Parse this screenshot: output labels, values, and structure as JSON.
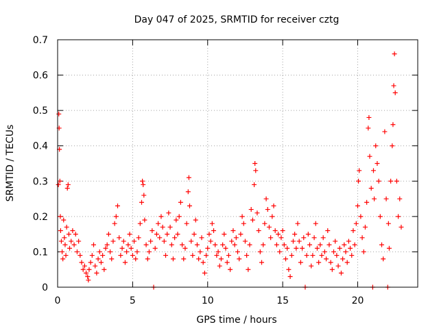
{
  "chart_data": {
    "type": "scatter",
    "title": "Day 047 of 2025, SRMTID for receiver cztg",
    "xlabel": "GPS time / hours",
    "ylabel": "SRMTID / TECUs",
    "xlim": [
      0,
      24
    ],
    "ylim": [
      0,
      0.7
    ],
    "xticks": [
      0,
      5,
      10,
      15,
      20
    ],
    "xtick_labels": [
      "0",
      "5",
      "10",
      "15",
      "20"
    ],
    "yticks": [
      0,
      0.1,
      0.2,
      0.3,
      0.4,
      0.5,
      0.6,
      0.7
    ],
    "ytick_labels": [
      "0",
      "0.1",
      "0.2",
      "0.3",
      "0.4",
      "0.5",
      "0.6",
      "0.7"
    ],
    "grid": true,
    "marker": "+",
    "colors": {
      "points": "#ff0000",
      "grid": "#a0a0a0",
      "axis": "#000000"
    },
    "series": [
      {
        "name": "SRMTID",
        "approximate": true,
        "points": [
          [
            0.05,
            0.29
          ],
          [
            0.08,
            0.49
          ],
          [
            0.1,
            0.45
          ],
          [
            0.12,
            0.39
          ],
          [
            0.15,
            0.3
          ],
          [
            0.18,
            0.2
          ],
          [
            0.2,
            0.16
          ],
          [
            0.25,
            0.13
          ],
          [
            0.3,
            0.1
          ],
          [
            0.35,
            0.08
          ],
          [
            0.4,
            0.19
          ],
          [
            0.45,
            0.14
          ],
          [
            0.5,
            0.12
          ],
          [
            0.55,
            0.09
          ],
          [
            0.6,
            0.17
          ],
          [
            0.65,
            0.28
          ],
          [
            0.7,
            0.29
          ],
          [
            0.75,
            0.15
          ],
          [
            0.8,
            0.11
          ],
          [
            0.9,
            0.13
          ],
          [
            1.0,
            0.16
          ],
          [
            1.1,
            0.12
          ],
          [
            1.2,
            0.15
          ],
          [
            1.3,
            0.1
          ],
          [
            1.4,
            0.13
          ],
          [
            1.5,
            0.09
          ],
          [
            1.6,
            0.07
          ],
          [
            1.7,
            0.05
          ],
          [
            1.8,
            0.06
          ],
          [
            1.9,
            0.04
          ],
          [
            2.0,
            0.03
          ],
          [
            2.05,
            0.02
          ],
          [
            2.1,
            0.05
          ],
          [
            2.2,
            0.07
          ],
          [
            2.3,
            0.09
          ],
          [
            2.4,
            0.12
          ],
          [
            2.5,
            0.06
          ],
          [
            2.6,
            0.04
          ],
          [
            2.7,
            0.08
          ],
          [
            2.8,
            0.1
          ],
          [
            2.9,
            0.07
          ],
          [
            3.0,
            0.09
          ],
          [
            3.1,
            0.05
          ],
          [
            3.2,
            0.11
          ],
          [
            3.3,
            0.12
          ],
          [
            3.4,
            0.15
          ],
          [
            3.5,
            0.1
          ],
          [
            3.6,
            0.08
          ],
          [
            3.7,
            0.13
          ],
          [
            3.8,
            0.18
          ],
          [
            3.9,
            0.2
          ],
          [
            4.0,
            0.23
          ],
          [
            4.1,
            0.14
          ],
          [
            4.2,
            0.09
          ],
          [
            4.3,
            0.11
          ],
          [
            4.4,
            0.13
          ],
          [
            4.5,
            0.07
          ],
          [
            4.6,
            0.1
          ],
          [
            4.7,
            0.12
          ],
          [
            4.8,
            0.15
          ],
          [
            4.9,
            0.11
          ],
          [
            5.0,
            0.09
          ],
          [
            5.1,
            0.13
          ],
          [
            5.2,
            0.08
          ],
          [
            5.3,
            0.1
          ],
          [
            5.4,
            0.14
          ],
          [
            5.5,
            0.18
          ],
          [
            5.6,
            0.24
          ],
          [
            5.65,
            0.3
          ],
          [
            5.7,
            0.29
          ],
          [
            5.75,
            0.26
          ],
          [
            5.8,
            0.19
          ],
          [
            5.9,
            0.12
          ],
          [
            6.0,
            0.08
          ],
          [
            6.1,
            0.1
          ],
          [
            6.2,
            0.13
          ],
          [
            6.3,
            0.16
          ],
          [
            6.4,
            0.0
          ],
          [
            6.5,
            0.11
          ],
          [
            6.6,
            0.15
          ],
          [
            6.7,
            0.18
          ],
          [
            6.8,
            0.14
          ],
          [
            6.9,
            0.2
          ],
          [
            7.0,
            0.17
          ],
          [
            7.1,
            0.13
          ],
          [
            7.2,
            0.09
          ],
          [
            7.3,
            0.15
          ],
          [
            7.4,
            0.21
          ],
          [
            7.5,
            0.17
          ],
          [
            7.6,
            0.12
          ],
          [
            7.7,
            0.08
          ],
          [
            7.8,
            0.14
          ],
          [
            7.9,
            0.19
          ],
          [
            8.0,
            0.15
          ],
          [
            8.1,
            0.2
          ],
          [
            8.2,
            0.24
          ],
          [
            8.3,
            0.12
          ],
          [
            8.4,
            0.08
          ],
          [
            8.5,
            0.11
          ],
          [
            8.6,
            0.18
          ],
          [
            8.7,
            0.27
          ],
          [
            8.75,
            0.31
          ],
          [
            8.8,
            0.23
          ],
          [
            8.9,
            0.13
          ],
          [
            9.0,
            0.09
          ],
          [
            9.1,
            0.15
          ],
          [
            9.2,
            0.19
          ],
          [
            9.3,
            0.12
          ],
          [
            9.4,
            0.08
          ],
          [
            9.5,
            0.1
          ],
          [
            9.6,
            0.14
          ],
          [
            9.7,
            0.07
          ],
          [
            9.8,
            0.04
          ],
          [
            9.9,
            0.09
          ],
          [
            10.0,
            0.11
          ],
          [
            10.1,
            0.15
          ],
          [
            10.2,
            0.13
          ],
          [
            10.3,
            0.18
          ],
          [
            10.4,
            0.16
          ],
          [
            10.5,
            0.12
          ],
          [
            10.6,
            0.09
          ],
          [
            10.7,
            0.1
          ],
          [
            10.8,
            0.06
          ],
          [
            10.9,
            0.08
          ],
          [
            11.0,
            0.12
          ],
          [
            11.1,
            0.15
          ],
          [
            11.2,
            0.11
          ],
          [
            11.3,
            0.07
          ],
          [
            11.4,
            0.09
          ],
          [
            11.5,
            0.05
          ],
          [
            11.6,
            0.13
          ],
          [
            11.7,
            0.16
          ],
          [
            11.8,
            0.12
          ],
          [
            11.9,
            0.14
          ],
          [
            12.0,
            0.1
          ],
          [
            12.1,
            0.08
          ],
          [
            12.2,
            0.15
          ],
          [
            12.3,
            0.2
          ],
          [
            12.4,
            0.18
          ],
          [
            12.5,
            0.13
          ],
          [
            12.6,
            0.09
          ],
          [
            12.7,
            0.05
          ],
          [
            12.8,
            0.12
          ],
          [
            12.9,
            0.22
          ],
          [
            13.0,
            0.19
          ],
          [
            13.1,
            0.29
          ],
          [
            13.15,
            0.35
          ],
          [
            13.2,
            0.33
          ],
          [
            13.3,
            0.21
          ],
          [
            13.4,
            0.16
          ],
          [
            13.5,
            0.1
          ],
          [
            13.6,
            0.07
          ],
          [
            13.7,
            0.12
          ],
          [
            13.8,
            0.18
          ],
          [
            13.9,
            0.25
          ],
          [
            14.0,
            0.22
          ],
          [
            14.1,
            0.17
          ],
          [
            14.2,
            0.14
          ],
          [
            14.3,
            0.2
          ],
          [
            14.4,
            0.23
          ],
          [
            14.5,
            0.16
          ],
          [
            14.6,
            0.12
          ],
          [
            14.7,
            0.15
          ],
          [
            14.8,
            0.1
          ],
          [
            14.9,
            0.14
          ],
          [
            15.0,
            0.16
          ],
          [
            15.1,
            0.12
          ],
          [
            15.2,
            0.08
          ],
          [
            15.3,
            0.11
          ],
          [
            15.4,
            0.05
          ],
          [
            15.5,
            0.03
          ],
          [
            15.6,
            0.09
          ],
          [
            15.7,
            0.13
          ],
          [
            15.8,
            0.15
          ],
          [
            15.9,
            0.11
          ],
          [
            16.0,
            0.18
          ],
          [
            16.1,
            0.13
          ],
          [
            16.2,
            0.07
          ],
          [
            16.3,
            0.11
          ],
          [
            16.4,
            0.14
          ],
          [
            16.5,
            0.0
          ],
          [
            16.6,
            0.09
          ],
          [
            16.7,
            0.15
          ],
          [
            16.8,
            0.12
          ],
          [
            16.9,
            0.06
          ],
          [
            17.0,
            0.09
          ],
          [
            17.1,
            0.14
          ],
          [
            17.2,
            0.18
          ],
          [
            17.3,
            0.11
          ],
          [
            17.4,
            0.07
          ],
          [
            17.5,
            0.12
          ],
          [
            17.6,
            0.09
          ],
          [
            17.7,
            0.14
          ],
          [
            17.8,
            0.1
          ],
          [
            17.9,
            0.08
          ],
          [
            18.0,
            0.16
          ],
          [
            18.1,
            0.12
          ],
          [
            18.2,
            0.07
          ],
          [
            18.3,
            0.05
          ],
          [
            18.4,
            0.1
          ],
          [
            18.5,
            0.13
          ],
          [
            18.6,
            0.09
          ],
          [
            18.7,
            0.06
          ],
          [
            18.8,
            0.11
          ],
          [
            18.9,
            0.04
          ],
          [
            19.0,
            0.08
          ],
          [
            19.1,
            0.12
          ],
          [
            19.2,
            0.1
          ],
          [
            19.3,
            0.07
          ],
          [
            19.4,
            0.13
          ],
          [
            19.5,
            0.11
          ],
          [
            19.6,
            0.09
          ],
          [
            19.7,
            0.16
          ],
          [
            19.8,
            0.12
          ],
          [
            19.9,
            0.18
          ],
          [
            20.0,
            0.23
          ],
          [
            20.05,
            0.3
          ],
          [
            20.1,
            0.33
          ],
          [
            20.2,
            0.2
          ],
          [
            20.3,
            0.14
          ],
          [
            20.4,
            0.1
          ],
          [
            20.5,
            0.17
          ],
          [
            20.6,
            0.24
          ],
          [
            20.7,
            0.45
          ],
          [
            20.75,
            0.48
          ],
          [
            20.8,
            0.37
          ],
          [
            20.9,
            0.28
          ],
          [
            21.0,
            0.0
          ],
          [
            21.05,
            0.33
          ],
          [
            21.1,
            0.25
          ],
          [
            21.2,
            0.4
          ],
          [
            21.3,
            0.35
          ],
          [
            21.4,
            0.3
          ],
          [
            21.5,
            0.2
          ],
          [
            21.6,
            0.12
          ],
          [
            21.7,
            0.08
          ],
          [
            21.8,
            0.44
          ],
          [
            21.9,
            0.25
          ],
          [
            22.0,
            0.0
          ],
          [
            22.05,
            0.18
          ],
          [
            22.1,
            0.11
          ],
          [
            22.2,
            0.3
          ],
          [
            22.3,
            0.4
          ],
          [
            22.35,
            0.46
          ],
          [
            22.4,
            0.57
          ],
          [
            22.45,
            0.66
          ],
          [
            22.5,
            0.55
          ],
          [
            22.6,
            0.3
          ],
          [
            22.7,
            0.2
          ],
          [
            22.8,
            0.25
          ],
          [
            22.9,
            0.17
          ]
        ]
      }
    ]
  }
}
